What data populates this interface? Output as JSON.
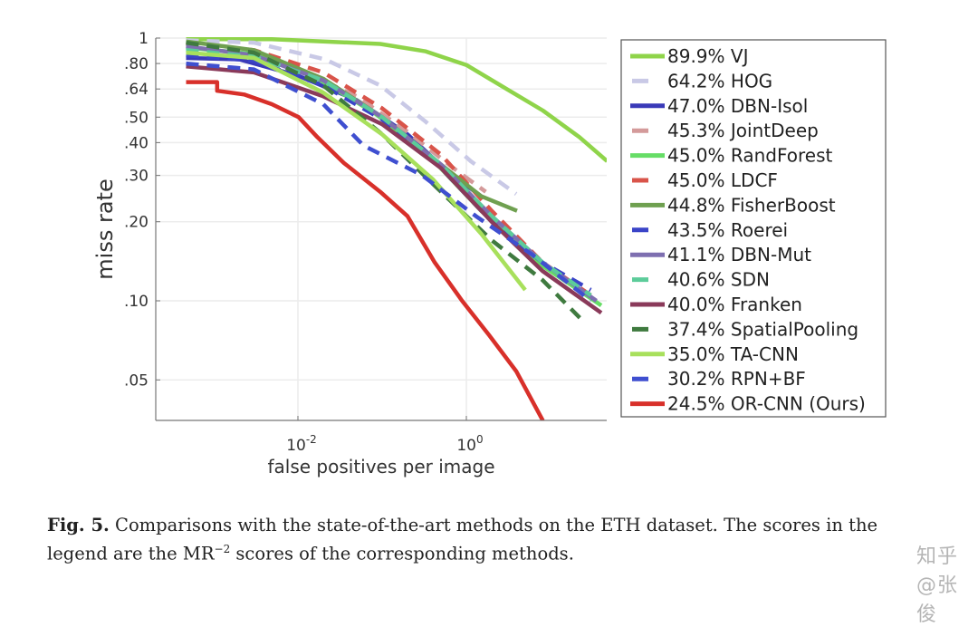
{
  "chart_data": {
    "type": "line",
    "title": "",
    "xlabel": "false positives per image",
    "ylabel": "miss rate",
    "xscale": "log",
    "yscale": "log",
    "xlim": [
      0.0002,
      47
    ],
    "ylim": [
      0.035,
      1
    ],
    "x_ticks": [
      {
        "value": 0.01,
        "base": "10",
        "exp": "-2"
      },
      {
        "value": 1,
        "base": "10",
        "exp": "0"
      }
    ],
    "y_ticks": [
      {
        "value": 1,
        "label": "1"
      },
      {
        "value": 0.8,
        "label": ".80"
      },
      {
        "value": 0.64,
        "label": ".64"
      },
      {
        "value": 0.5,
        "label": ".50"
      },
      {
        "value": 0.4,
        "label": ".40"
      },
      {
        "value": 0.3,
        "label": ".30"
      },
      {
        "value": 0.2,
        "label": ".20"
      },
      {
        "value": 0.1,
        "label": ".10"
      },
      {
        "value": 0.05,
        "label": ".05"
      }
    ],
    "grid": true,
    "legend_position": "right-outside",
    "series": [
      {
        "name": "VJ",
        "score": "89.9%",
        "color": "#8fd44a",
        "dashed": false,
        "points": [
          [
            0.00047,
            0.99
          ],
          [
            0.0049,
            0.99
          ],
          [
            0.095,
            0.95
          ],
          [
            0.33,
            0.89
          ],
          [
            1,
            0.79
          ],
          [
            3.0,
            0.64
          ],
          [
            8.1,
            0.53
          ],
          [
            22,
            0.42
          ],
          [
            47,
            0.34
          ]
        ]
      },
      {
        "name": "HOG",
        "score": "64.2%",
        "color": "#c9c9e6",
        "dashed": true,
        "points": [
          [
            0.00047,
            0.98
          ],
          [
            0.003,
            0.96
          ],
          [
            0.021,
            0.83
          ],
          [
            0.095,
            0.66
          ],
          [
            0.33,
            0.48
          ],
          [
            1.13,
            0.34
          ],
          [
            3.9,
            0.255
          ]
        ]
      },
      {
        "name": "DBN-Isol",
        "score": "47.0%",
        "color": "#3a3ab8",
        "dashed": false,
        "points": [
          [
            0.00047,
            0.84
          ],
          [
            0.002,
            0.83
          ],
          [
            0.01,
            0.72
          ],
          [
            0.05,
            0.58
          ],
          [
            0.2,
            0.43
          ],
          [
            0.6,
            0.31
          ],
          [
            1.5,
            0.25
          ]
        ]
      },
      {
        "name": "JointDeep",
        "score": "45.3%",
        "color": "#d49a9a",
        "dashed": true,
        "points": [
          [
            0.00047,
            0.95
          ],
          [
            0.002,
            0.9
          ],
          [
            0.01,
            0.76
          ],
          [
            0.05,
            0.6
          ],
          [
            0.2,
            0.44
          ],
          [
            0.7,
            0.32
          ],
          [
            1.7,
            0.26
          ]
        ]
      },
      {
        "name": "RandForest",
        "score": "45.0%",
        "color": "#66dd66",
        "dashed": false,
        "points": [
          [
            0.00047,
            0.92
          ],
          [
            0.003,
            0.87
          ],
          [
            0.015,
            0.72
          ],
          [
            0.08,
            0.52
          ],
          [
            0.35,
            0.36
          ],
          [
            1.5,
            0.22
          ],
          [
            7,
            0.14
          ],
          [
            40,
            0.096
          ]
        ]
      },
      {
        "name": "LDCF",
        "score": "45.0%",
        "color": "#d9544a",
        "dashed": true,
        "points": [
          [
            0.00047,
            0.96
          ],
          [
            0.003,
            0.9
          ],
          [
            0.02,
            0.74
          ],
          [
            0.1,
            0.54
          ],
          [
            0.5,
            0.36
          ],
          [
            2,
            0.22
          ],
          [
            8,
            0.14
          ],
          [
            30,
            0.105
          ]
        ]
      },
      {
        "name": "FisherBoost",
        "score": "44.8%",
        "color": "#6fa050",
        "dashed": false,
        "points": [
          [
            0.00047,
            0.97
          ],
          [
            0.003,
            0.9
          ],
          [
            0.02,
            0.7
          ],
          [
            0.1,
            0.5
          ],
          [
            0.5,
            0.33
          ],
          [
            1.5,
            0.25
          ],
          [
            4,
            0.22
          ]
        ]
      },
      {
        "name": "Roerei",
        "score": "43.5%",
        "color": "#3a44c8",
        "dashed": true,
        "points": [
          [
            0.00047,
            0.86
          ],
          [
            0.003,
            0.82
          ],
          [
            0.02,
            0.66
          ],
          [
            0.1,
            0.49
          ],
          [
            0.5,
            0.32
          ],
          [
            2,
            0.2
          ],
          [
            8,
            0.14
          ],
          [
            30,
            0.11
          ]
        ]
      },
      {
        "name": "DBN-Mut",
        "score": "41.1%",
        "color": "#7e6fb0",
        "dashed": false,
        "points": [
          [
            0.00047,
            0.93
          ],
          [
            0.003,
            0.86
          ],
          [
            0.02,
            0.69
          ],
          [
            0.1,
            0.5
          ],
          [
            0.5,
            0.33
          ],
          [
            2,
            0.21
          ],
          [
            8,
            0.14
          ],
          [
            35,
            0.1
          ]
        ]
      },
      {
        "name": "SDN",
        "score": "40.6%",
        "color": "#5ccc9a",
        "dashed": true,
        "points": [
          [
            0.00047,
            0.9
          ],
          [
            0.003,
            0.85
          ],
          [
            0.02,
            0.69
          ],
          [
            0.1,
            0.5
          ],
          [
            0.5,
            0.33
          ],
          [
            2,
            0.21
          ],
          [
            8,
            0.14
          ],
          [
            30,
            0.105
          ]
        ]
      },
      {
        "name": "Franken",
        "score": "40.0%",
        "color": "#8a3a5a",
        "dashed": false,
        "points": [
          [
            0.00047,
            0.78
          ],
          [
            0.003,
            0.74
          ],
          [
            0.02,
            0.6
          ],
          [
            0.1,
            0.47
          ],
          [
            0.5,
            0.32
          ],
          [
            2,
            0.2
          ],
          [
            8,
            0.13
          ],
          [
            40,
            0.09
          ]
        ]
      },
      {
        "name": "SpatialPooling",
        "score": "37.4%",
        "color": "#3f7a3f",
        "dashed": true,
        "points": [
          [
            0.00047,
            0.96
          ],
          [
            0.003,
            0.88
          ],
          [
            0.02,
            0.66
          ],
          [
            0.1,
            0.43
          ],
          [
            0.5,
            0.26
          ],
          [
            2,
            0.17
          ],
          [
            8,
            0.12
          ],
          [
            25,
            0.083
          ]
        ]
      },
      {
        "name": "TA-CNN",
        "score": "35.0%",
        "color": "#a8e05c",
        "dashed": false,
        "points": [
          [
            0.00047,
            0.88
          ],
          [
            0.003,
            0.84
          ],
          [
            0.02,
            0.62
          ],
          [
            0.1,
            0.43
          ],
          [
            0.4,
            0.29
          ],
          [
            1.5,
            0.18
          ],
          [
            5,
            0.11
          ]
        ]
      },
      {
        "name": "RPN+BF",
        "score": "30.2%",
        "color": "#3f4fd0",
        "dashed": true,
        "points": [
          [
            0.00047,
            0.8
          ],
          [
            0.003,
            0.76
          ],
          [
            0.02,
            0.56
          ],
          [
            0.06,
            0.39
          ],
          [
            0.3,
            0.3
          ],
          [
            1.3,
            0.21
          ],
          [
            6,
            0.15
          ],
          [
            30,
            0.1
          ]
        ]
      },
      {
        "name": "OR-CNN (Ours)",
        "score": "24.5%",
        "color": "#d8302a",
        "dashed": false,
        "points": [
          [
            0.00047,
            0.68
          ],
          [
            0.0011,
            0.68
          ],
          [
            0.0011,
            0.63
          ],
          [
            0.0023,
            0.61
          ],
          [
            0.0049,
            0.56
          ],
          [
            0.0102,
            0.5
          ],
          [
            0.017,
            0.42
          ],
          [
            0.035,
            0.335
          ],
          [
            0.095,
            0.26
          ],
          [
            0.2,
            0.21
          ],
          [
            0.42,
            0.14
          ],
          [
            0.89,
            0.1
          ],
          [
            1.86,
            0.074
          ],
          [
            3.9,
            0.054
          ],
          [
            8.1,
            0.035
          ]
        ]
      }
    ]
  },
  "caption": {
    "fig_label": "Fig. 5.",
    "text_before": " Comparisons with the state-of-the-art methods on the ETH dataset. The scores in the legend are the MR",
    "superscript": "−2",
    "text_after": " scores of the corresponding methods."
  },
  "watermark": "知乎 @张俊"
}
